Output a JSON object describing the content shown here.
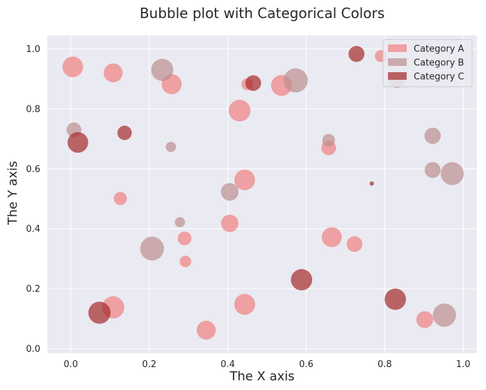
{
  "chart_data": {
    "type": "scatter",
    "title": "Bubble plot with Categorical Colors",
    "xlabel": "The X axis",
    "ylabel": "The Y axis",
    "xlim": [
      -0.06,
      1.035
    ],
    "ylim": [
      -0.015,
      1.045
    ],
    "xticks": [
      "0.0",
      "0.2",
      "0.4",
      "0.6",
      "0.8",
      "1.0"
    ],
    "yticks": [
      "0.0",
      "0.2",
      "0.4",
      "0.6",
      "0.8",
      "1.0"
    ],
    "grid": true,
    "legend_placement": "top-right",
    "series": [
      {
        "name": "Category A",
        "color": "#f08080",
        "points": [
          {
            "x": 0.005,
            "y": 0.94,
            "s": 450
          },
          {
            "x": 0.108,
            "y": 0.92,
            "s": 380
          },
          {
            "x": 0.257,
            "y": 0.882,
            "s": 420
          },
          {
            "x": 0.45,
            "y": 0.882,
            "s": 150
          },
          {
            "x": 0.537,
            "y": 0.878,
            "s": 460
          },
          {
            "x": 0.43,
            "y": 0.794,
            "s": 500
          },
          {
            "x": 0.79,
            "y": 0.976,
            "s": 150
          },
          {
            "x": 0.657,
            "y": 0.67,
            "s": 230
          },
          {
            "x": 0.443,
            "y": 0.563,
            "s": 450
          },
          {
            "x": 0.126,
            "y": 0.501,
            "s": 180
          },
          {
            "x": 0.405,
            "y": 0.418,
            "s": 320
          },
          {
            "x": 0.665,
            "y": 0.372,
            "s": 420
          },
          {
            "x": 0.723,
            "y": 0.349,
            "s": 260
          },
          {
            "x": 0.29,
            "y": 0.368,
            "s": 200
          },
          {
            "x": 0.292,
            "y": 0.291,
            "s": 140
          },
          {
            "x": 0.108,
            "y": 0.138,
            "s": 520
          },
          {
            "x": 0.443,
            "y": 0.148,
            "s": 460
          },
          {
            "x": 0.345,
            "y": 0.062,
            "s": 380
          },
          {
            "x": 0.902,
            "y": 0.097,
            "s": 300
          }
        ]
      },
      {
        "name": "Category B",
        "color": "#bc8f8f",
        "points": [
          {
            "x": 0.233,
            "y": 0.93,
            "s": 520
          },
          {
            "x": 0.573,
            "y": 0.895,
            "s": 620
          },
          {
            "x": 0.831,
            "y": 0.898,
            "s": 300
          },
          {
            "x": 0.008,
            "y": 0.73,
            "s": 230
          },
          {
            "x": 0.255,
            "y": 0.673,
            "s": 110
          },
          {
            "x": 0.657,
            "y": 0.695,
            "s": 170
          },
          {
            "x": 0.922,
            "y": 0.71,
            "s": 280
          },
          {
            "x": 0.922,
            "y": 0.596,
            "s": 270
          },
          {
            "x": 0.972,
            "y": 0.584,
            "s": 560
          },
          {
            "x": 0.405,
            "y": 0.523,
            "s": 330
          },
          {
            "x": 0.278,
            "y": 0.422,
            "s": 110
          },
          {
            "x": 0.207,
            "y": 0.334,
            "s": 600
          },
          {
            "x": 0.952,
            "y": 0.112,
            "s": 570
          }
        ]
      },
      {
        "name": "Category C",
        "color": "#a52a2a",
        "points": [
          {
            "x": 0.728,
            "y": 0.983,
            "s": 270
          },
          {
            "x": 0.465,
            "y": 0.886,
            "s": 260
          },
          {
            "x": 0.137,
            "y": 0.72,
            "s": 220
          },
          {
            "x": 0.018,
            "y": 0.688,
            "s": 450
          },
          {
            "x": 0.767,
            "y": 0.551,
            "s": 20
          },
          {
            "x": 0.588,
            "y": 0.23,
            "s": 480
          },
          {
            "x": 0.827,
            "y": 0.165,
            "s": 480
          },
          {
            "x": 0.073,
            "y": 0.12,
            "s": 520
          }
        ]
      }
    ]
  }
}
